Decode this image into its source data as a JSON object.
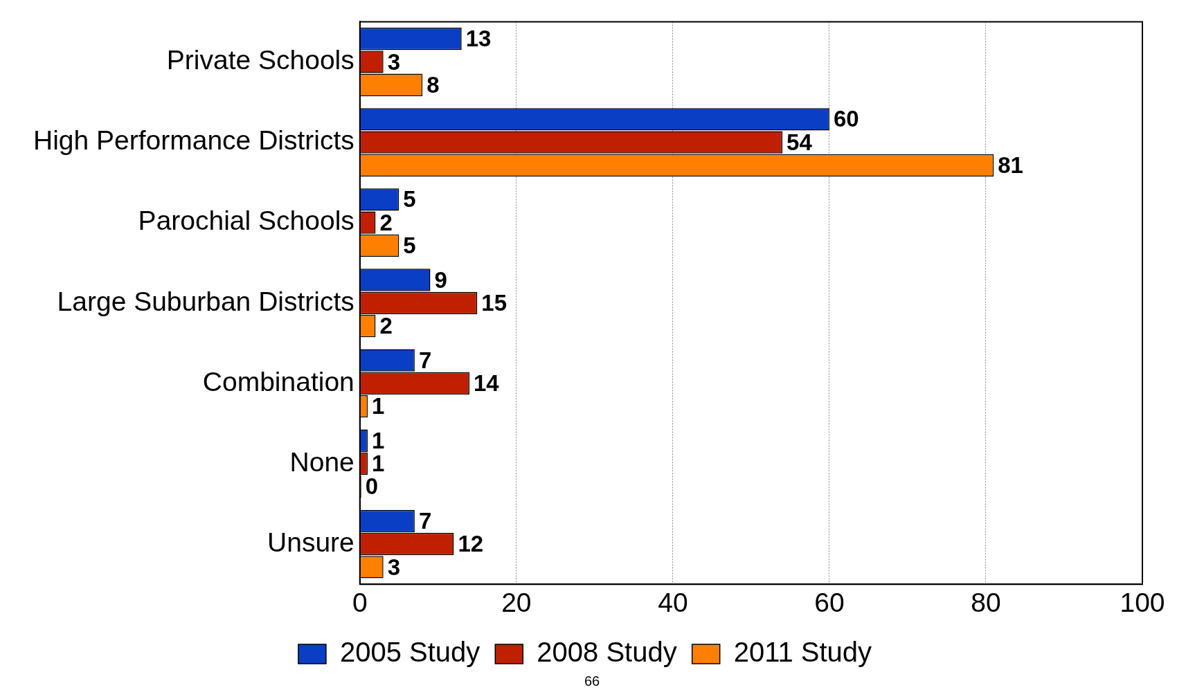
{
  "chart_data": {
    "type": "bar",
    "orientation": "horizontal",
    "categories": [
      "Private Schools",
      "High Performance Districts",
      "Parochial Schools",
      "Large Suburban Districts",
      "Combination",
      "None",
      "Unsure"
    ],
    "series": [
      {
        "name": "2005 Study",
        "color": "#0a3ec4",
        "values": [
          13,
          60,
          5,
          9,
          7,
          1,
          7
        ]
      },
      {
        "name": "2008 Study",
        "color": "#c01f00",
        "values": [
          3,
          54,
          2,
          15,
          14,
          1,
          12
        ]
      },
      {
        "name": "2011 Study",
        "color": "#ff8000",
        "values": [
          8,
          81,
          5,
          2,
          1,
          0,
          3
        ]
      }
    ],
    "xlim": [
      0,
      100
    ],
    "xticks": [
      0,
      20,
      40,
      60,
      80,
      100
    ],
    "grid": "x",
    "legend": "bottom",
    "data_labels": true,
    "annotations": [
      "66"
    ]
  }
}
